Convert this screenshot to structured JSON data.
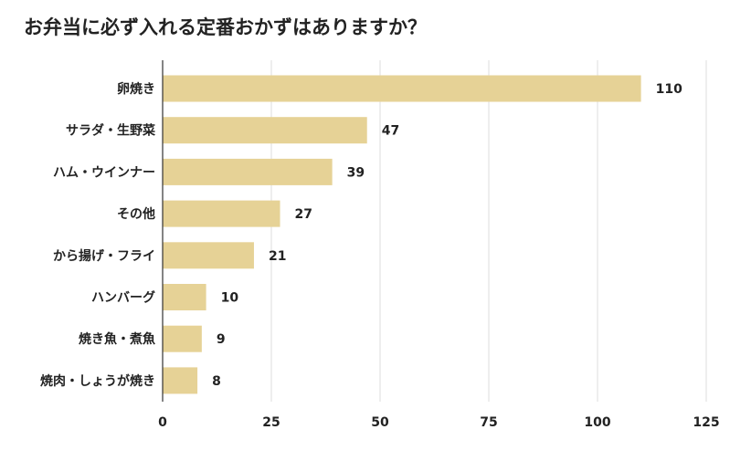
{
  "chart_data": {
    "type": "bar",
    "orientation": "horizontal",
    "title": "お弁当に必ず入れる定番おかずはありますか？",
    "categories": [
      "卵焼き",
      "サラダ・生野菜",
      "ハム・ウインナー",
      "その他",
      "から揚げ・フライ",
      "ハンバーグ",
      "焼き魚・煮魚",
      "焼肉・しょうが焼き"
    ],
    "values": [
      110,
      47,
      39,
      27,
      21,
      10,
      9,
      8
    ],
    "value_labels": [
      "110",
      "47",
      "39",
      "27",
      "21",
      "10",
      "9",
      "8"
    ],
    "xlim": [
      0,
      125
    ],
    "xticks": [
      0,
      25,
      50,
      75,
      100,
      125
    ],
    "xtick_labels": [
      "0",
      "25",
      "50",
      "75",
      "100",
      "125"
    ],
    "xlabel": "",
    "ylabel": "",
    "grid": true,
    "legend": "none",
    "colors": {
      "bar": "#e6d296",
      "grid": "#dddddd",
      "axis": "#333333"
    }
  }
}
